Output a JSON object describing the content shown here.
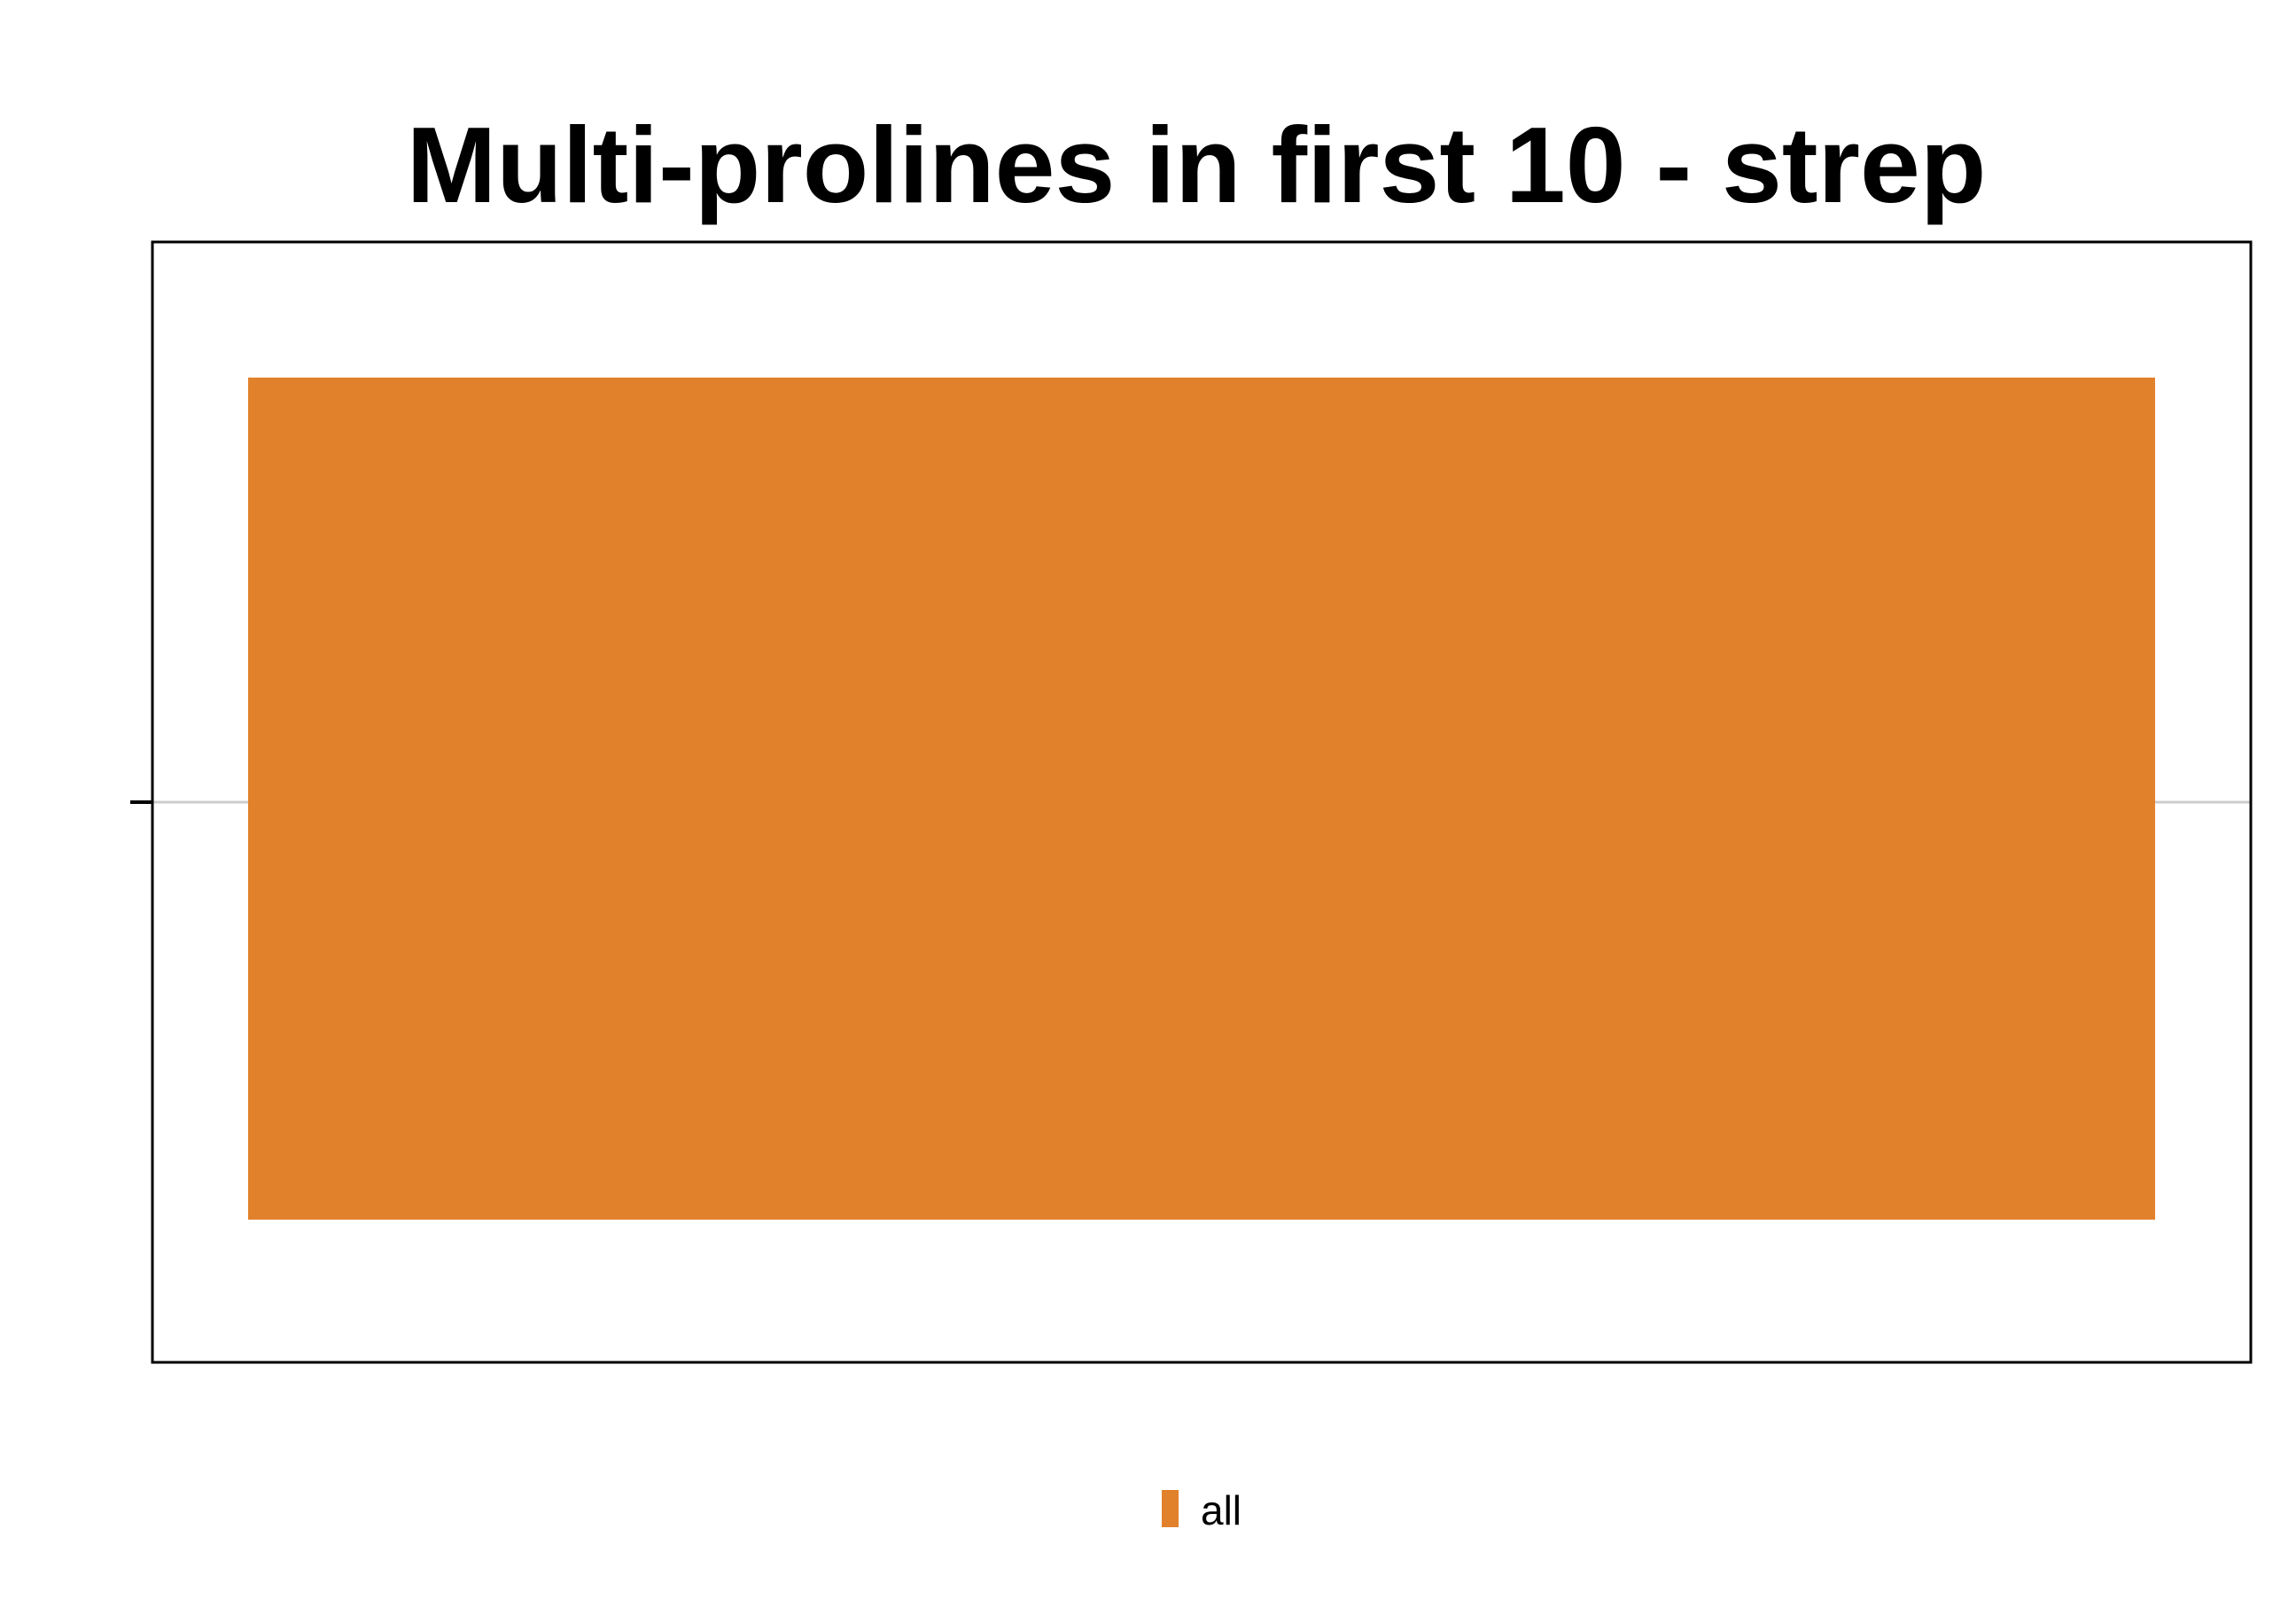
{
  "chart_data": {
    "type": "bar",
    "title": "Multi-prolines in first 10 - strep",
    "xlabel": "",
    "ylabel": "",
    "categories": [
      ""
    ],
    "series": [
      {
        "name": "all",
        "values": [
          1
        ],
        "color": "#e2812b"
      }
    ],
    "legend": {
      "placement": "bottom-center",
      "entries": [
        "all"
      ]
    },
    "grid": true,
    "frame_color": "#000000",
    "grid_color": "#cccccc"
  }
}
